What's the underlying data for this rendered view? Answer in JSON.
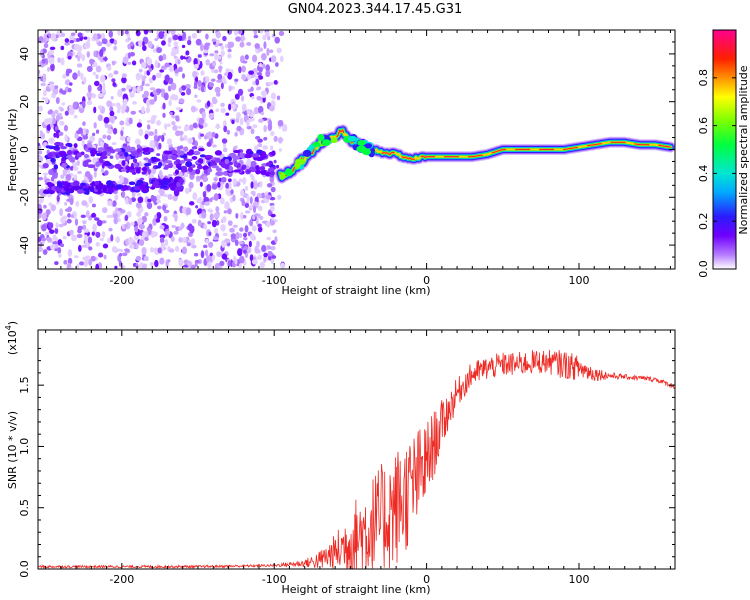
{
  "title": "GN04.2023.344.17.45.G31",
  "chart_data": [
    {
      "type": "heatmap",
      "xlabel": "Height of straight line (km)",
      "ylabel": "Frequency (Hz)",
      "xlim": [
        -255,
        163
      ],
      "ylim": [
        -50,
        50
      ],
      "xticks": [
        -200,
        -100,
        0,
        100
      ],
      "yticks": [
        -40,
        -20,
        0,
        20,
        40
      ],
      "track": {
        "x": [
          -96,
          -90,
          -80,
          -70,
          -60,
          -55,
          -50,
          -45,
          -40,
          -30,
          -20,
          -15,
          -10,
          0,
          10,
          20,
          30,
          40,
          50,
          60,
          70,
          80,
          90,
          100,
          110,
          120,
          130,
          140,
          150,
          160
        ],
        "y": [
          -11,
          -9,
          -4,
          3,
          6,
          7,
          4,
          2,
          1,
          -1,
          -2,
          -3,
          -4,
          -3,
          -3,
          -3,
          -3,
          -2,
          0,
          0,
          0,
          0,
          0,
          1,
          2,
          3,
          3,
          2,
          2,
          1
        ]
      },
      "low_band": {
        "x": [
          -250,
          -200,
          -160
        ],
        "y": [
          -16,
          -16,
          -14
        ]
      },
      "mid_band": {
        "x": [
          -250,
          -200,
          -150,
          -100
        ],
        "y": [
          -2,
          -4,
          -5,
          -6
        ]
      },
      "colorbar": {
        "label": "Normalized spectral amplitude",
        "range": [
          0,
          1
        ],
        "ticks": [
          "0.0",
          "0.2",
          "0.4",
          "0.6",
          "0.8"
        ]
      }
    },
    {
      "type": "line",
      "xlabel": "Height of straight line (km)",
      "ylabel": "SNR (10 * v/v)",
      "yscale_label": "(x10",
      "yscale_exp": "4",
      "yscale_close": ")",
      "xlim": [
        -255,
        163
      ],
      "ylim": [
        0,
        1.95
      ],
      "xticks": [
        -200,
        -100,
        0,
        100
      ],
      "yticks": [
        "0.0",
        "0.5",
        "1.0",
        "1.5"
      ],
      "color": "#ee2a24",
      "envelope": {
        "x": [
          -255,
          -150,
          -100,
          -80,
          -70,
          -60,
          -50,
          -40,
          -30,
          -20,
          -10,
          0,
          10,
          20,
          30,
          40,
          50,
          60,
          70,
          80,
          90,
          100,
          110,
          120,
          130,
          140,
          150,
          163
        ],
        "base": [
          0.02,
          0.02,
          0.03,
          0.05,
          0.08,
          0.15,
          0.25,
          0.35,
          0.45,
          0.55,
          0.7,
          0.9,
          1.2,
          1.45,
          1.6,
          1.65,
          1.68,
          1.68,
          1.7,
          1.7,
          1.68,
          1.65,
          1.6,
          1.58,
          1.57,
          1.56,
          1.55,
          1.49
        ],
        "amp": [
          0.01,
          0.01,
          0.01,
          0.03,
          0.08,
          0.15,
          0.3,
          0.4,
          0.45,
          0.5,
          0.45,
          0.35,
          0.2,
          0.12,
          0.1,
          0.1,
          0.1,
          0.1,
          0.1,
          0.1,
          0.12,
          0.1,
          0.06,
          0.03,
          0.02,
          0.02,
          0.02,
          0.02
        ]
      }
    }
  ]
}
